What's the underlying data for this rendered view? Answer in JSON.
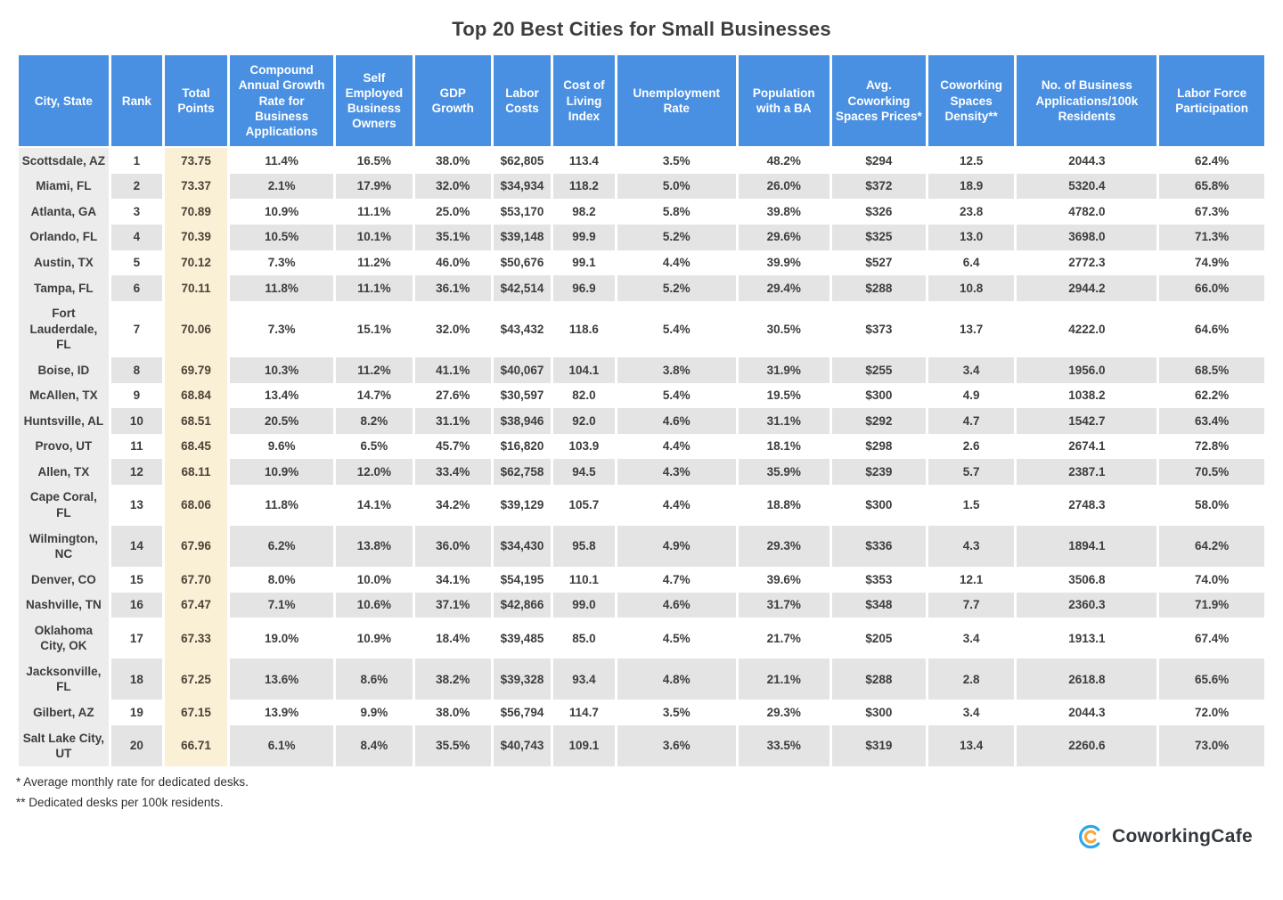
{
  "chart_data": {
    "type": "table",
    "title": "Top 20 Best Cities for Small Businesses",
    "columns": [
      "City, State",
      "Rank",
      "Total Points",
      "Compound Annual Growth Rate for Business Applications",
      "Self Employed Business Owners",
      "GDP Growth",
      "Labor Costs",
      "Cost of Living Index",
      "Unemployment Rate",
      "Population with a BA",
      "Avg. Coworking Spaces Prices*",
      "Coworking Spaces Density**",
      "No. of Business Applications/100k Residents",
      "Labor Force Participation"
    ],
    "rows": [
      [
        "Scottsdale, AZ",
        "1",
        "73.75",
        "11.4%",
        "16.5%",
        "38.0%",
        "$62,805",
        "113.4",
        "3.5%",
        "48.2%",
        "$294",
        "12.5",
        "2044.3",
        "62.4%"
      ],
      [
        "Miami, FL",
        "2",
        "73.37",
        "2.1%",
        "17.9%",
        "32.0%",
        "$34,934",
        "118.2",
        "5.0%",
        "26.0%",
        "$372",
        "18.9",
        "5320.4",
        "65.8%"
      ],
      [
        "Atlanta, GA",
        "3",
        "70.89",
        "10.9%",
        "11.1%",
        "25.0%",
        "$53,170",
        "98.2",
        "5.8%",
        "39.8%",
        "$326",
        "23.8",
        "4782.0",
        "67.3%"
      ],
      [
        "Orlando, FL",
        "4",
        "70.39",
        "10.5%",
        "10.1%",
        "35.1%",
        "$39,148",
        "99.9",
        "5.2%",
        "29.6%",
        "$325",
        "13.0",
        "3698.0",
        "71.3%"
      ],
      [
        "Austin, TX",
        "5",
        "70.12",
        "7.3%",
        "11.2%",
        "46.0%",
        "$50,676",
        "99.1",
        "4.4%",
        "39.9%",
        "$527",
        "6.4",
        "2772.3",
        "74.9%"
      ],
      [
        "Tampa, FL",
        "6",
        "70.11",
        "11.8%",
        "11.1%",
        "36.1%",
        "$42,514",
        "96.9",
        "5.2%",
        "29.4%",
        "$288",
        "10.8",
        "2944.2",
        "66.0%"
      ],
      [
        "Fort Lauderdale, FL",
        "7",
        "70.06",
        "7.3%",
        "15.1%",
        "32.0%",
        "$43,432",
        "118.6",
        "5.4%",
        "30.5%",
        "$373",
        "13.7",
        "4222.0",
        "64.6%"
      ],
      [
        "Boise, ID",
        "8",
        "69.79",
        "10.3%",
        "11.2%",
        "41.1%",
        "$40,067",
        "104.1",
        "3.8%",
        "31.9%",
        "$255",
        "3.4",
        "1956.0",
        "68.5%"
      ],
      [
        "McAllen, TX",
        "9",
        "68.84",
        "13.4%",
        "14.7%",
        "27.6%",
        "$30,597",
        "82.0",
        "5.4%",
        "19.5%",
        "$300",
        "4.9",
        "1038.2",
        "62.2%"
      ],
      [
        "Huntsville, AL",
        "10",
        "68.51",
        "20.5%",
        "8.2%",
        "31.1%",
        "$38,946",
        "92.0",
        "4.6%",
        "31.1%",
        "$292",
        "4.7",
        "1542.7",
        "63.4%"
      ],
      [
        "Provo, UT",
        "11",
        "68.45",
        "9.6%",
        "6.5%",
        "45.7%",
        "$16,820",
        "103.9",
        "4.4%",
        "18.1%",
        "$298",
        "2.6",
        "2674.1",
        "72.8%"
      ],
      [
        "Allen, TX",
        "12",
        "68.11",
        "10.9%",
        "12.0%",
        "33.4%",
        "$62,758",
        "94.5",
        "4.3%",
        "35.9%",
        "$239",
        "5.7",
        "2387.1",
        "70.5%"
      ],
      [
        "Cape Coral, FL",
        "13",
        "68.06",
        "11.8%",
        "14.1%",
        "34.2%",
        "$39,129",
        "105.7",
        "4.4%",
        "18.8%",
        "$300",
        "1.5",
        "2748.3",
        "58.0%"
      ],
      [
        "Wilmington, NC",
        "14",
        "67.96",
        "6.2%",
        "13.8%",
        "36.0%",
        "$34,430",
        "95.8",
        "4.9%",
        "29.3%",
        "$336",
        "4.3",
        "1894.1",
        "64.2%"
      ],
      [
        "Denver, CO",
        "15",
        "67.70",
        "8.0%",
        "10.0%",
        "34.1%",
        "$54,195",
        "110.1",
        "4.7%",
        "39.6%",
        "$353",
        "12.1",
        "3506.8",
        "74.0%"
      ],
      [
        "Nashville, TN",
        "16",
        "67.47",
        "7.1%",
        "10.6%",
        "37.1%",
        "$42,866",
        "99.0",
        "4.6%",
        "31.7%",
        "$348",
        "7.7",
        "2360.3",
        "71.9%"
      ],
      [
        "Oklahoma City, OK",
        "17",
        "67.33",
        "19.0%",
        "10.9%",
        "18.4%",
        "$39,485",
        "85.0",
        "4.5%",
        "21.7%",
        "$205",
        "3.4",
        "1913.1",
        "67.4%"
      ],
      [
        "Jacksonville, FL",
        "18",
        "67.25",
        "13.6%",
        "8.6%",
        "38.2%",
        "$39,328",
        "93.4",
        "4.8%",
        "21.1%",
        "$288",
        "2.8",
        "2618.8",
        "65.6%"
      ],
      [
        "Gilbert, AZ",
        "19",
        "67.15",
        "13.9%",
        "9.9%",
        "38.0%",
        "$56,794",
        "114.7",
        "3.5%",
        "29.3%",
        "$300",
        "3.4",
        "2044.3",
        "72.0%"
      ],
      [
        "Salt Lake City, UT",
        "20",
        "66.71",
        "6.1%",
        "8.4%",
        "35.5%",
        "$40,743",
        "109.1",
        "3.6%",
        "33.5%",
        "$319",
        "13.4",
        "2260.6",
        "73.0%"
      ]
    ],
    "footnotes": [
      "* Average monthly rate for dedicated desks.",
      "** Dedicated desks per 100k residents."
    ],
    "layout": {
      "grid": "off",
      "legend": "none",
      "striped_rows": true
    }
  },
  "logo": {
    "text": "CoworkingCafe",
    "icon": "double-c-circle-icon",
    "icon_outer_color": "#2ea6e9",
    "icon_inner_color": "#f6a83b"
  },
  "colors": {
    "header_bg": "#4a90e2",
    "header_text": "#ffffff",
    "row_alt_bg": "#e4e4e4",
    "city_column_bg": "#ececec",
    "total_points_column_bg": "#faf0d6",
    "body_text": "#3d3d3d",
    "title_text": "#3d3d3d"
  }
}
